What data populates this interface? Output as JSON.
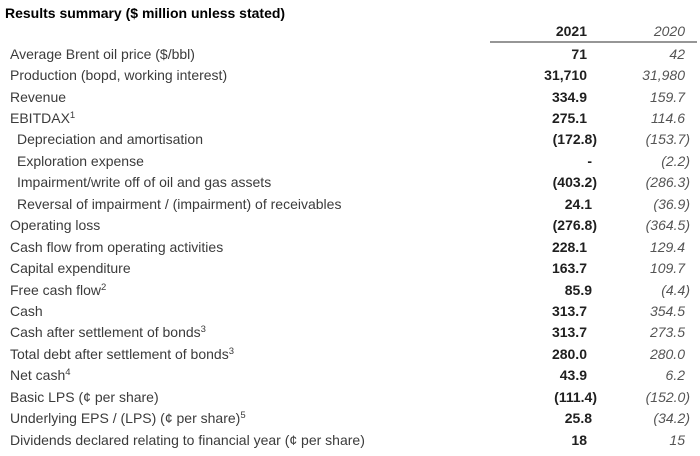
{
  "title": "Results summary ($ million unless stated)",
  "columns": [
    "2021",
    "2020"
  ],
  "rows": [
    {
      "label": "Average Brent oil price ($/bbl)",
      "sup": "",
      "v2021": "71",
      "v2020": "42",
      "indent": false
    },
    {
      "label": "Production (bopd, working interest)",
      "sup": "",
      "v2021": "31,710",
      "v2020": "31,980",
      "indent": false
    },
    {
      "label": "Revenue",
      "sup": "",
      "v2021": "334.9",
      "v2020": "159.7",
      "indent": false
    },
    {
      "label": "EBITDAX",
      "sup": "1",
      "v2021": "275.1",
      "v2020": "114.6",
      "indent": false
    },
    {
      "label": "Depreciation and amortisation",
      "sup": "",
      "v2021": "(172.8)",
      "v2020": "(153.7)",
      "indent": true
    },
    {
      "label": "Exploration expense",
      "sup": "",
      "v2021": "-",
      "v2020": "(2.2)",
      "indent": true
    },
    {
      "label": "Impairment/write off of oil and gas assets",
      "sup": "",
      "v2021": "(403.2)",
      "v2020": "(286.3)",
      "indent": true
    },
    {
      "label": "Reversal of impairment / (impairment) of receivables",
      "sup": "",
      "v2021": "24.1",
      "v2020": "(36.9)",
      "indent": true
    },
    {
      "label": "Operating loss",
      "sup": "",
      "v2021": "(276.8)",
      "v2020": "(364.5)",
      "indent": false
    },
    {
      "label": "Cash flow from operating activities",
      "sup": "",
      "v2021": "228.1",
      "v2020": "129.4",
      "indent": false
    },
    {
      "label": "Capital expenditure",
      "sup": "",
      "v2021": "163.7",
      "v2020": "109.7",
      "indent": false
    },
    {
      "label": "Free cash flow",
      "sup": "2",
      "v2021": "85.9",
      "v2020": "(4.4)",
      "indent": false
    },
    {
      "label": "Cash",
      "sup": "",
      "v2021": "313.7",
      "v2020": "354.5",
      "indent": false
    },
    {
      "label": "Cash after settlement of bonds",
      "sup": "3",
      "v2021": "313.7",
      "v2020": "273.5",
      "indent": false
    },
    {
      "label": "Total debt after settlement of bonds",
      "sup": "3",
      "v2021": "280.0",
      "v2020": "280.0",
      "indent": false
    },
    {
      "label": "Net cash",
      "sup": "4",
      "v2021": "43.9",
      "v2020": "6.2",
      "indent": false
    },
    {
      "label": "Basic LPS (¢ per share)",
      "sup": "",
      "v2021": "(111.4)",
      "v2020": "(152.0)",
      "indent": false
    },
    {
      "label": "Underlying EPS / (LPS) (¢ per share)",
      "sup": "5",
      "v2021": "25.8",
      "v2020": "(34.2)",
      "indent": false
    },
    {
      "label": "Dividends declared relating to financial year (¢ per share)",
      "sup": "",
      "v2021": "18",
      "v2020": "15",
      "indent": false
    }
  ],
  "colors": {
    "title_text": "#000000",
    "label_text": "#3b3b3b",
    "value_2021": "#1f1f1f",
    "value_2020": "#545454",
    "header_underline": "#969696",
    "background": "#ffffff"
  }
}
